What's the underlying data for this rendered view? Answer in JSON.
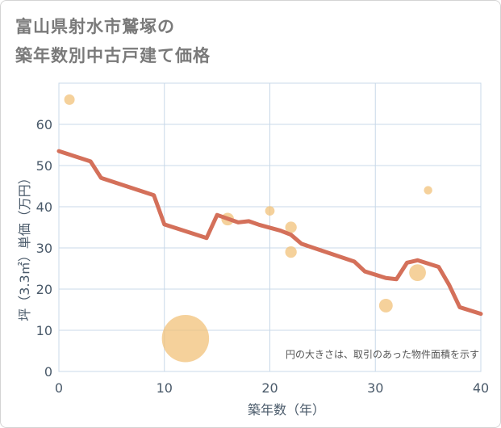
{
  "chart_data": {
    "type": "scatter",
    "title": "富山県射水市鷲塚の\n築年数別中古戸建て価格",
    "xlabel": "築年数（年）",
    "ylabel": "坪（3.3㎡）単価（万円）",
    "xlim": [
      0,
      40
    ],
    "ylim": [
      0,
      70
    ],
    "xticks": [
      0,
      10,
      20,
      30,
      40
    ],
    "yticks": [
      0,
      10,
      20,
      30,
      40,
      50,
      60
    ],
    "grid": true,
    "note": "円の大きさは、取引のあった物件面積を示す",
    "colors": {
      "points": "#f2c27a",
      "trend": "#d4705a",
      "grid": "#c8d8e8"
    },
    "points": [
      {
        "x": 1,
        "y": 66,
        "size": 1.0
      },
      {
        "x": 12,
        "y": 8,
        "size": 4.5
      },
      {
        "x": 16,
        "y": 37,
        "size": 1.2
      },
      {
        "x": 20,
        "y": 39,
        "size": 0.9
      },
      {
        "x": 22,
        "y": 35,
        "size": 1.1
      },
      {
        "x": 22,
        "y": 29,
        "size": 1.1
      },
      {
        "x": 31,
        "y": 16,
        "size": 1.3
      },
      {
        "x": 34,
        "y": 24,
        "size": 1.6
      },
      {
        "x": 35,
        "y": 44,
        "size": 0.8
      }
    ],
    "trend": {
      "x": [
        0,
        3,
        4,
        9,
        10,
        14,
        15,
        17,
        18,
        19,
        21,
        22,
        23,
        28,
        29,
        31,
        32,
        33,
        34,
        36,
        37,
        38,
        40
      ],
      "y": [
        53.5,
        51,
        47,
        42.8,
        35.7,
        32.4,
        38,
        36.2,
        36.5,
        35.6,
        34.2,
        33.2,
        31,
        26.7,
        24.3,
        22.7,
        22.4,
        26.4,
        27,
        25.4,
        21,
        15.6,
        14
      ]
    }
  }
}
